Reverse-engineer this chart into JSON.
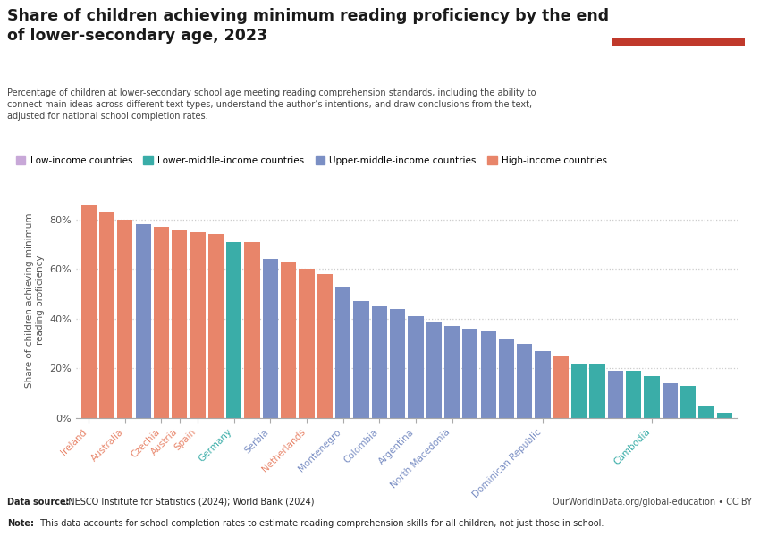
{
  "title_line1": "Share of children achieving minimum reading proficiency by the end",
  "title_line2": "of lower-secondary age, 2023",
  "subtitle": "Percentage of children at lower-secondary school age meeting reading comprehension standards, including the ability to\nconnect main ideas across different text types, understand the author’s intentions, and draw conclusions from the text,\nadjusted for national school completion rates.",
  "ylabel": "Share of children achieving minimum\nreading proficiency",
  "datasource_bold": "Data source:",
  "datasource_normal": " UNESCO Institute for Statistics (2024); World Bank (2024)",
  "url": "OurWorldInData.org/global-education • CC BY",
  "note_bold": "Note:",
  "note_normal": " This data accounts for school completion rates to estimate reading comprehension skills for all children, not just those in school.",
  "legend": [
    {
      "label": "Low-income countries",
      "color": "#c8a8d8"
    },
    {
      "label": "Lower-middle-income countries",
      "color": "#3aada8"
    },
    {
      "label": "Upper-middle-income countries",
      "color": "#7b8fc4"
    },
    {
      "label": "High-income countries",
      "color": "#e8856a"
    }
  ],
  "bars": [
    {
      "country": "Ireland",
      "value": 86,
      "income": "high",
      "color": "#e8856a"
    },
    {
      "country": "",
      "value": 83,
      "income": "high",
      "color": "#e8856a"
    },
    {
      "country": "Australia",
      "value": 80,
      "income": "high",
      "color": "#e8856a"
    },
    {
      "country": "",
      "value": 78,
      "income": "upper_middle",
      "color": "#7b8fc4"
    },
    {
      "country": "Czechia",
      "value": 77,
      "income": "high",
      "color": "#e8856a"
    },
    {
      "country": "Austria",
      "value": 76,
      "income": "high",
      "color": "#e8856a"
    },
    {
      "country": "Spain",
      "value": 75,
      "income": "high",
      "color": "#e8856a"
    },
    {
      "country": "",
      "value": 74,
      "income": "high",
      "color": "#e8856a"
    },
    {
      "country": "Germany",
      "value": 71,
      "income": "lower_middle",
      "color": "#3aada8"
    },
    {
      "country": "",
      "value": 71,
      "income": "high",
      "color": "#e8856a"
    },
    {
      "country": "Serbia",
      "value": 64,
      "income": "upper_middle",
      "color": "#7b8fc4"
    },
    {
      "country": "",
      "value": 63,
      "income": "high",
      "color": "#e8856a"
    },
    {
      "country": "Netherlands",
      "value": 60,
      "income": "high",
      "color": "#e8856a"
    },
    {
      "country": "",
      "value": 58,
      "income": "high",
      "color": "#e8856a"
    },
    {
      "country": "Montenegro",
      "value": 53,
      "income": "upper_middle",
      "color": "#7b8fc4"
    },
    {
      "country": "",
      "value": 47,
      "income": "upper_middle",
      "color": "#7b8fc4"
    },
    {
      "country": "Colombia",
      "value": 45,
      "income": "upper_middle",
      "color": "#7b8fc4"
    },
    {
      "country": "",
      "value": 44,
      "income": "upper_middle",
      "color": "#7b8fc4"
    },
    {
      "country": "Argentina",
      "value": 41,
      "income": "upper_middle",
      "color": "#7b8fc4"
    },
    {
      "country": "",
      "value": 39,
      "income": "upper_middle",
      "color": "#7b8fc4"
    },
    {
      "country": "North Macedonia",
      "value": 37,
      "income": "upper_middle",
      "color": "#7b8fc4"
    },
    {
      "country": "",
      "value": 36,
      "income": "upper_middle",
      "color": "#7b8fc4"
    },
    {
      "country": "",
      "value": 35,
      "income": "upper_middle",
      "color": "#7b8fc4"
    },
    {
      "country": "",
      "value": 32,
      "income": "upper_middle",
      "color": "#7b8fc4"
    },
    {
      "country": "",
      "value": 30,
      "income": "upper_middle",
      "color": "#7b8fc4"
    },
    {
      "country": "Dominican Republic",
      "value": 27,
      "income": "upper_middle",
      "color": "#7b8fc4"
    },
    {
      "country": "",
      "value": 25,
      "income": "high",
      "color": "#e8856a"
    },
    {
      "country": "",
      "value": 22,
      "income": "lower_middle",
      "color": "#3aada8"
    },
    {
      "country": "",
      "value": 22,
      "income": "lower_middle",
      "color": "#3aada8"
    },
    {
      "country": "",
      "value": 19,
      "income": "upper_middle",
      "color": "#7b8fc4"
    },
    {
      "country": "",
      "value": 19,
      "income": "lower_middle",
      "color": "#3aada8"
    },
    {
      "country": "Cambodia",
      "value": 17,
      "income": "lower_middle",
      "color": "#3aada8"
    },
    {
      "country": "",
      "value": 14,
      "income": "upper_middle",
      "color": "#7b8fc4"
    },
    {
      "country": "",
      "value": 13,
      "income": "lower_middle",
      "color": "#3aada8"
    },
    {
      "country": "",
      "value": 5,
      "income": "lower_middle",
      "color": "#3aada8"
    },
    {
      "country": "",
      "value": 2,
      "income": "lower_middle",
      "color": "#3aada8"
    }
  ],
  "ylim": [
    0,
    95
  ],
  "yticks": [
    0,
    20,
    40,
    60,
    80
  ],
  "background_color": "#ffffff",
  "plot_bg_color": "#ffffff",
  "grid_color": "#cccccc",
  "title_color": "#1a1a1a",
  "axis_label_color": "#555555",
  "tick_label_color": "#555555",
  "owid_bg": "#1a3a5c",
  "owid_red": "#c0392b"
}
